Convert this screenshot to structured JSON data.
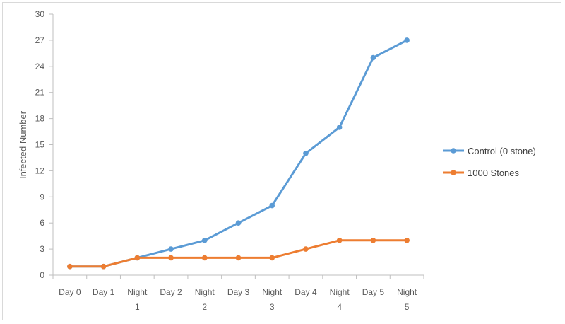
{
  "chart_data": {
    "type": "line",
    "title": "",
    "xlabel": "",
    "ylabel": "Infected Number",
    "ylim": [
      0,
      30
    ],
    "yticks": [
      0,
      3,
      6,
      9,
      12,
      15,
      18,
      21,
      24,
      27,
      30
    ],
    "categories": [
      "Day 0",
      "Day 1",
      "Night 1",
      "Day 2",
      "Night 2",
      "Day 3",
      "Night 3",
      "Day 4",
      "Night 4",
      "Day 5",
      "Night 5"
    ],
    "series": [
      {
        "name": "Control (0 stone)",
        "color": "#5b9bd5",
        "values": [
          1,
          1,
          2,
          3,
          4,
          6,
          8,
          14,
          17,
          25,
          27
        ]
      },
      {
        "name": "1000 Stones",
        "color": "#ed7d31",
        "values": [
          1,
          1,
          2,
          2,
          2,
          2,
          2,
          3,
          4,
          4,
          4
        ]
      }
    ],
    "grid": false,
    "legend": "right"
  }
}
